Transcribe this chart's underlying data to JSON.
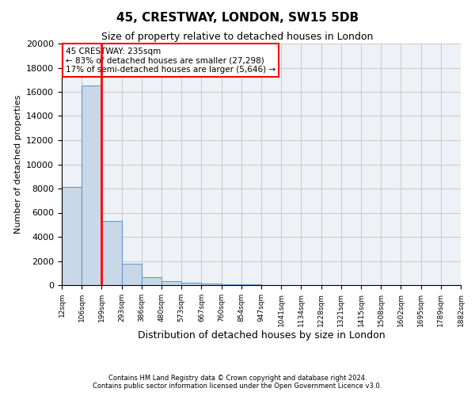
{
  "title1": "45, CRESTWAY, LONDON, SW15 5DB",
  "title2": "Size of property relative to detached houses in London",
  "xlabel": "Distribution of detached houses by size in London",
  "ylabel": "Number of detached properties",
  "annotation_line1": "45 CRESTWAY: 235sqm",
  "annotation_line2": "← 83% of detached houses are smaller (27,298)",
  "annotation_line3": "17% of semi-detached houses are larger (5,646) →",
  "footer1": "Contains HM Land Registry data © Crown copyright and database right 2024.",
  "footer2": "Contains public sector information licensed under the Open Government Licence v3.0.",
  "tick_labels": [
    "12sqm",
    "106sqm",
    "199sqm",
    "293sqm",
    "386sqm",
    "480sqm",
    "573sqm",
    "667sqm",
    "760sqm",
    "854sqm",
    "947sqm",
    "1041sqm",
    "1134sqm",
    "1228sqm",
    "1321sqm",
    "1415sqm",
    "1508sqm",
    "1602sqm",
    "1695sqm",
    "1789sqm",
    "1882sqm"
  ],
  "values": [
    8100,
    16500,
    5300,
    1800,
    650,
    350,
    200,
    100,
    60,
    35,
    20,
    15,
    10,
    8,
    6,
    5,
    4,
    3,
    2,
    2
  ],
  "bar_color": "#c8d8e8",
  "bar_edge_color": "#6699cc",
  "vline_color": "red",
  "ylim": [
    0,
    20000
  ],
  "yticks": [
    0,
    2000,
    4000,
    6000,
    8000,
    10000,
    12000,
    14000,
    16000,
    18000,
    20000
  ],
  "background_color": "#eef2f7",
  "grid_color": "#cccccc"
}
